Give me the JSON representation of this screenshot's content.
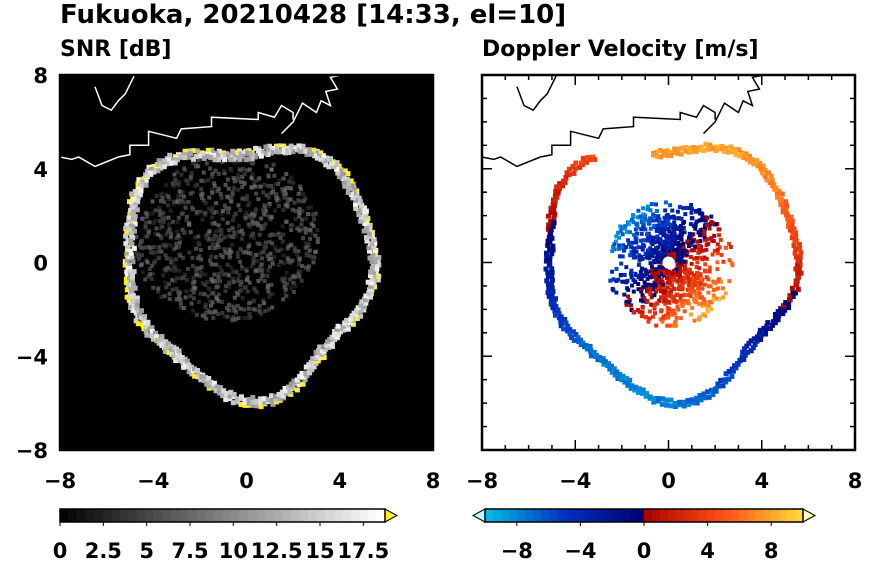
{
  "figure": {
    "title": "Fukuoka, 20210428 [14:33, el=10]"
  },
  "chart_data": [
    {
      "type": "heatmap",
      "title": "SNR [dB]",
      "xlabel": "",
      "ylabel": "",
      "xlim": [
        -8,
        8
      ],
      "ylim": [
        -8,
        8
      ],
      "x_ticks": [
        "−8",
        "−4",
        "0",
        "4",
        "8"
      ],
      "y_ticks": [
        "8",
        "4",
        "0",
        "−4",
        "−8"
      ],
      "background_color": "#000000",
      "radar_site": [
        0,
        0
      ],
      "echo_ring_radius_km": 5.5,
      "colorbar": {
        "min": 0,
        "max": 18.75,
        "step": 0.5,
        "tick_values": [
          0,
          2.5,
          5,
          7.5,
          10,
          12.5,
          15,
          17.5
        ],
        "tick_labels": [
          "0",
          "2.5",
          "5",
          "7.5",
          "10",
          "12.5",
          "15",
          "17.5"
        ],
        "low_color": "#000000",
        "high_color": "#ffffff",
        "over_color": "#ffee22"
      }
    },
    {
      "type": "heatmap",
      "title": "Doppler Velocity [m/s]",
      "xlabel": "",
      "ylabel": "",
      "xlim": [
        -8,
        8
      ],
      "ylim": [
        -8,
        8
      ],
      "x_ticks": [
        "−8",
        "−4",
        "0",
        "4",
        "8"
      ],
      "y_ticks": [],
      "background_color": "#ffffff",
      "radar_site": [
        0,
        0
      ],
      "echo_ring_radius_km": 5.5,
      "colorbar": {
        "min": -10,
        "max": 10,
        "step": 0.5,
        "tick_values": [
          -8,
          -4,
          0,
          4,
          8
        ],
        "tick_labels": [
          "−8",
          "−4",
          "0",
          "4",
          "8"
        ],
        "negative_colors": [
          "#bff6ff",
          "#00bfe6",
          "#0030c0",
          "#000070"
        ],
        "positive_colors": [
          "#aa0000",
          "#ff3010",
          "#ff9020",
          "#ffffc0"
        ]
      }
    }
  ]
}
